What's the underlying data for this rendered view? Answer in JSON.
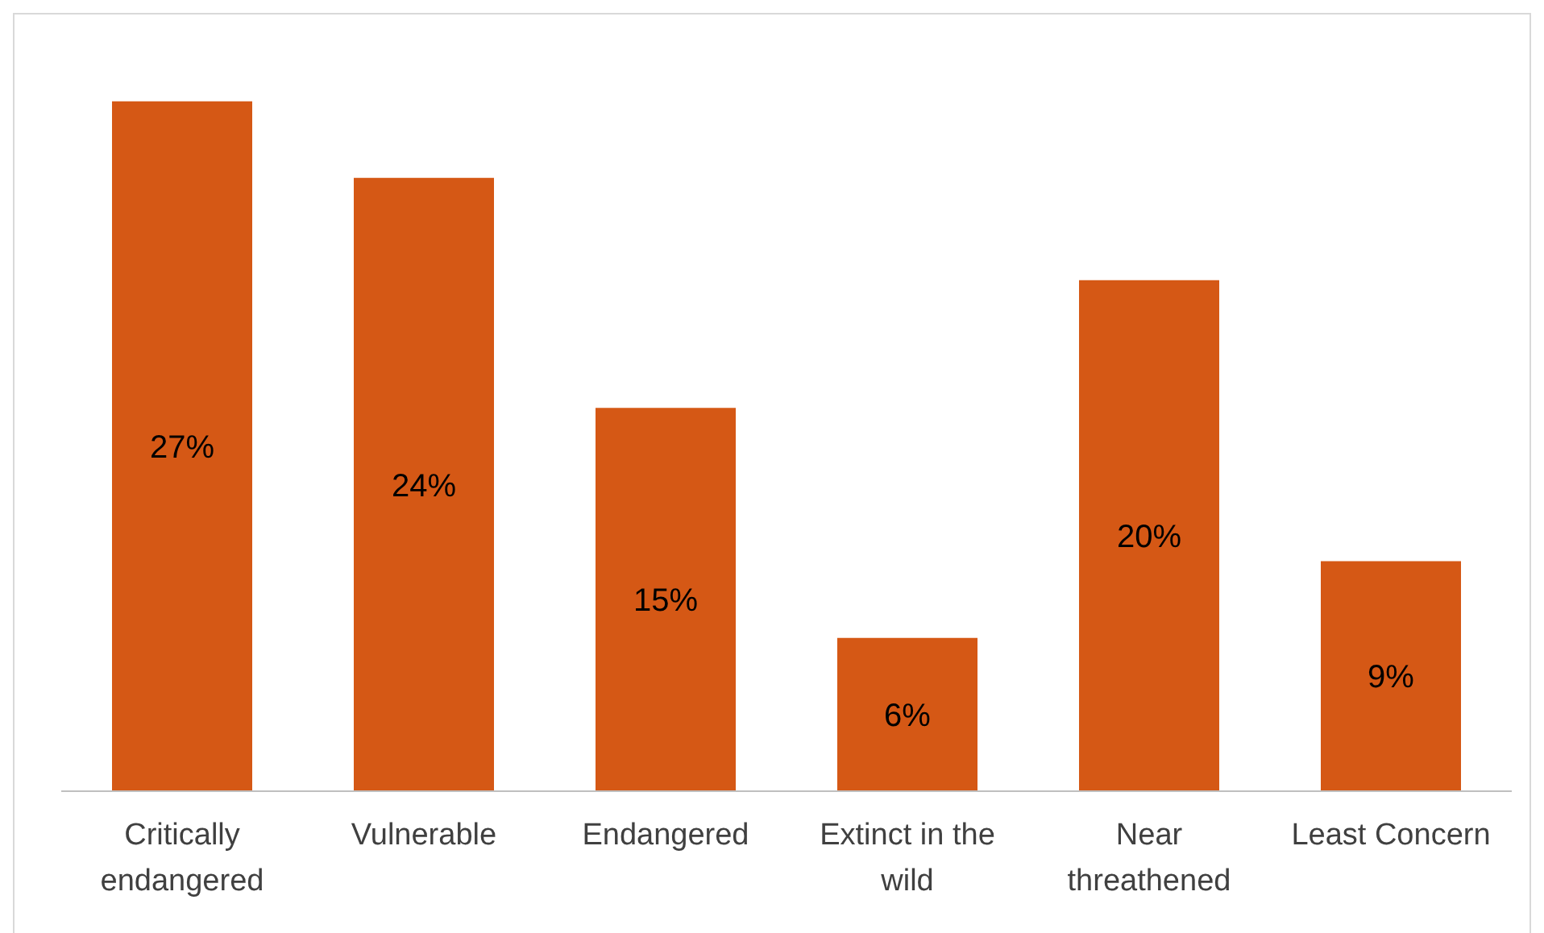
{
  "chart_data": {
    "type": "bar",
    "categories": [
      "Critically endangered",
      "Vulnerable",
      "Endangered",
      "Extinct in the wild",
      "Near threathened",
      "Least Concern"
    ],
    "values": [
      27,
      24,
      15,
      6,
      20,
      9
    ],
    "value_labels": [
      "27%",
      "24%",
      "15%",
      "6%",
      "20%",
      "9%"
    ],
    "color": "#d55815"
  }
}
